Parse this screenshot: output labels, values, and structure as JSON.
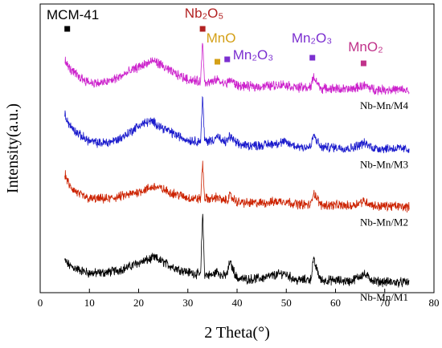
{
  "chart_data": {
    "type": "line",
    "xlabel": "2 Theta(°)",
    "ylabel": "Intensity(a.u.)",
    "xlim": [
      0,
      80
    ],
    "xticks": [
      0,
      10,
      20,
      30,
      40,
      50,
      60,
      70,
      80
    ],
    "y_ticks_shown": false,
    "grid": false,
    "series": [
      {
        "name": "Nb-Mn/M1",
        "color": "#000000",
        "x": [
          5,
          6,
          8,
          10,
          12,
          14,
          16,
          18,
          20,
          22,
          23.2,
          24.5,
          26,
          28,
          30,
          32,
          32.6,
          33,
          33.4,
          34,
          35,
          36,
          37,
          38,
          38.5,
          40,
          42,
          45,
          49.5,
          52,
          55,
          55.5,
          57,
          60,
          63,
          65.7,
          68,
          72,
          75
        ],
        "y": [
          0.26,
          0.21,
          0.17,
          0.14,
          0.14,
          0.15,
          0.17,
          0.2,
          0.24,
          0.27,
          0.29,
          0.26,
          0.22,
          0.18,
          0.15,
          0.13,
          0.12,
          0.75,
          0.13,
          0.12,
          0.12,
          0.16,
          0.11,
          0.13,
          0.25,
          0.09,
          0.08,
          0.09,
          0.14,
          0.07,
          0.08,
          0.27,
          0.07,
          0.07,
          0.06,
          0.13,
          0.06,
          0.05,
          0.05
        ]
      },
      {
        "name": "Nb-Mn/M2",
        "color": "#cc2200",
        "x": [
          5,
          6,
          8,
          10,
          12,
          14,
          16,
          18,
          20,
          22,
          23.2,
          24.5,
          26,
          28,
          30,
          32,
          32.6,
          33,
          33.4,
          34,
          35,
          36,
          37,
          38,
          38.5,
          40,
          42,
          45,
          49.5,
          52,
          55,
          55.5,
          57,
          60,
          63,
          65.7,
          68,
          72,
          75
        ],
        "y": [
          1.1,
          0.98,
          0.9,
          0.86,
          0.86,
          0.86,
          0.88,
          0.9,
          0.93,
          0.96,
          0.98,
          0.96,
          0.93,
          0.9,
          0.87,
          0.86,
          0.86,
          1.22,
          0.87,
          0.86,
          0.86,
          0.88,
          0.84,
          0.85,
          0.89,
          0.83,
          0.82,
          0.82,
          0.84,
          0.81,
          0.8,
          0.93,
          0.8,
          0.8,
          0.79,
          0.84,
          0.79,
          0.79,
          0.78
        ]
      },
      {
        "name": "Nb-Mn/M3",
        "color": "#1a1acc",
        "x": [
          5,
          6,
          8,
          10,
          12,
          14,
          16,
          18,
          20,
          22,
          23.2,
          24.5,
          26,
          28,
          30,
          32,
          32.6,
          33,
          33.4,
          34,
          35,
          36,
          37,
          38,
          38.5,
          40,
          42,
          45,
          49.5,
          52,
          55,
          55.5,
          57,
          60,
          63,
          65.7,
          68,
          72,
          75
        ],
        "y": [
          1.68,
          1.57,
          1.48,
          1.42,
          1.4,
          1.41,
          1.44,
          1.5,
          1.57,
          1.61,
          1.6,
          1.56,
          1.52,
          1.47,
          1.43,
          1.42,
          1.42,
          1.85,
          1.43,
          1.42,
          1.43,
          1.47,
          1.41,
          1.42,
          1.47,
          1.39,
          1.38,
          1.38,
          1.41,
          1.37,
          1.36,
          1.48,
          1.36,
          1.36,
          1.35,
          1.4,
          1.35,
          1.35,
          1.34
        ]
      },
      {
        "name": "Nb-Mn/M4",
        "color": "#cc22cc",
        "x": [
          5,
          6,
          8,
          10,
          12,
          14,
          16,
          18,
          20,
          22,
          23.2,
          24.5,
          26,
          28,
          30,
          32,
          32.6,
          33,
          33.4,
          34,
          35,
          36,
          37,
          38,
          38.5,
          40,
          42,
          45,
          49.5,
          52,
          55,
          55.5,
          57,
          60,
          63,
          65.7,
          68,
          72,
          75
        ],
        "y": [
          2.2,
          2.12,
          2.04,
          1.99,
          1.98,
          2.0,
          2.04,
          2.09,
          2.14,
          2.18,
          2.2,
          2.16,
          2.11,
          2.06,
          2.02,
          2.0,
          2.0,
          2.4,
          2.0,
          1.99,
          1.99,
          2.02,
          1.98,
          1.98,
          2.02,
          1.96,
          1.95,
          1.95,
          1.97,
          1.94,
          1.94,
          2.05,
          1.93,
          1.93,
          1.92,
          1.96,
          1.92,
          1.92,
          1.91
        ]
      }
    ],
    "annotations": [
      {
        "text": "MCM-41",
        "marker_x": 5.5,
        "color": "#000000"
      },
      {
        "text": "Nb₂O₅",
        "marker_x": 33,
        "color": "#b22222"
      },
      {
        "text": "MnO",
        "marker_x": 36,
        "color": "#d4a017"
      },
      {
        "text": "Mn₂O₃",
        "marker_x": 38,
        "color": "#7b2fd0"
      },
      {
        "text": "Mn₂O₃",
        "marker_x": 55.3,
        "color": "#7b2fd0"
      },
      {
        "text": "MnO₂",
        "marker_x": 65.7,
        "color": "#c0328a"
      }
    ]
  }
}
